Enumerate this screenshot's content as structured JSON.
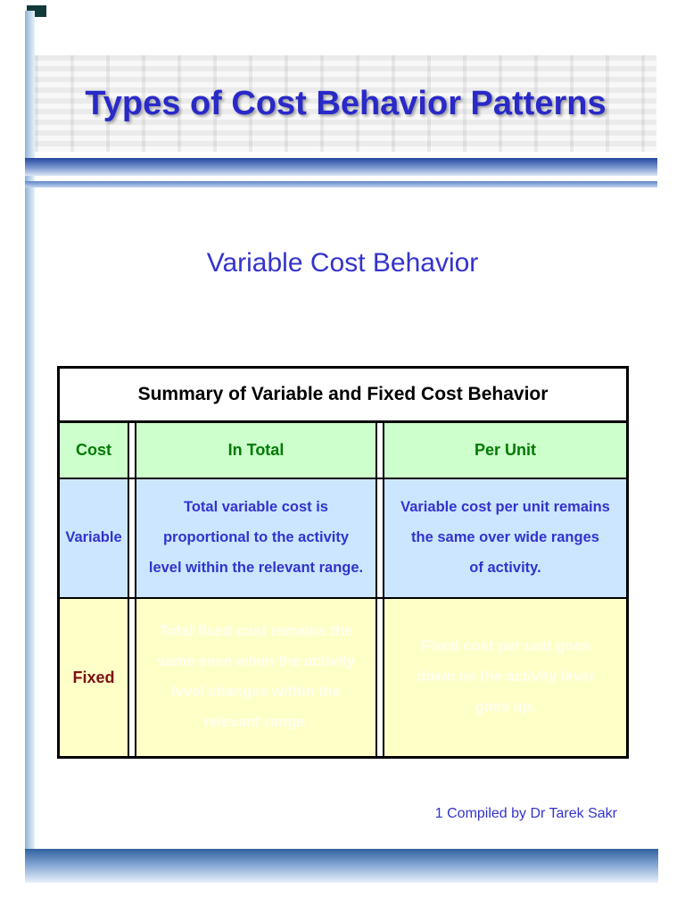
{
  "page": {
    "title": "Types of Cost Behavior Patterns",
    "subtitle": "Variable Cost Behavior",
    "footer": "1 Compiled by Dr Tarek Sakr"
  },
  "table": {
    "title": "Summary of Variable and Fixed Cost Behavior",
    "headers": [
      "Cost",
      "In Total",
      "Per Unit"
    ],
    "rows": [
      {
        "cost": "Variable",
        "in_total": "Total variable cost is\nproportional to the activity\nlevel within the relevant range.",
        "per_unit": "Variable cost per unit remains\nthe same over wide ranges\nof activity."
      },
      {
        "cost": "Fixed",
        "in_total": "Total fixed cost remains the\nsame even when the activity\nlevel changes within the\nrelevant range.",
        "per_unit": "Fixed cost per unit goes\ndown as the activity level\ngoes up."
      }
    ]
  },
  "colors": {
    "title_blue": "#2929c8",
    "body_blue": "#3333cc",
    "header_green_text": "#007a00",
    "header_green_bg": "#ccffcc",
    "variable_row_bg": "#cce6ff",
    "fixed_row_bg": "#ffffc8",
    "fixed_label_red": "#7b1113",
    "table_border": "#000000",
    "divider_blue": "#24469e"
  }
}
